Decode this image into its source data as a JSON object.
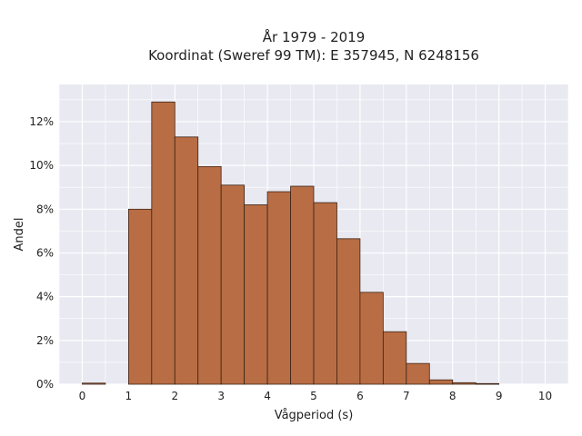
{
  "chart_data": {
    "type": "bar",
    "title_lines": [
      "År 1979 - 2019",
      "Koordinat (Sweref 99 TM): E 357945, N 6248156"
    ],
    "xlabel": "Vågperiod (s)",
    "ylabel": "Andel",
    "bin_width": 0.5,
    "bin_starts": [
      0,
      0.5,
      1,
      1.5,
      2,
      2.5,
      3,
      3.5,
      4,
      4.5,
      5,
      5.5,
      6,
      6.5,
      7,
      7.5,
      8,
      8.5,
      9,
      9.5
    ],
    "values": [
      0.05,
      0,
      8.0,
      12.9,
      11.3,
      9.95,
      9.1,
      8.2,
      8.8,
      9.05,
      8.3,
      6.65,
      4.2,
      2.4,
      0.95,
      0.2,
      0.07,
      0.03,
      0,
      0
    ],
    "value_unit": "%",
    "xlim": [
      -0.5,
      10.5
    ],
    "ylim": [
      0,
      13.7
    ],
    "xticks": [
      0,
      1,
      2,
      3,
      4,
      5,
      6,
      7,
      8,
      9,
      10
    ],
    "yticks": [
      0,
      2,
      4,
      6,
      8,
      10,
      12
    ],
    "ytick_labels": [
      "0%",
      "2%",
      "4%",
      "6%",
      "8%",
      "10%",
      "12%"
    ],
    "grid": true,
    "colors": {
      "bar_fill": "#b86d44",
      "bar_edge": "#3b2416",
      "plot_bg": "#e9e9f2",
      "grid": "#ffffff"
    }
  }
}
